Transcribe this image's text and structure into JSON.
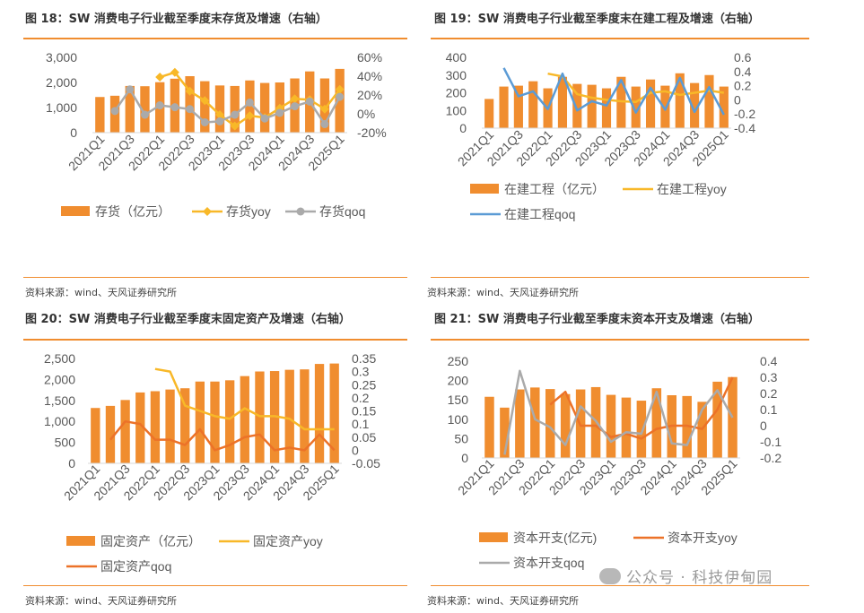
{
  "sources": {
    "top_left": "资料来源：wind、天风证券研究所",
    "top_right": "资料来源：wind、天风证券研究所",
    "bottom_left": "资料来源：wind、天风证券研究所",
    "bottom_right": "资料来源：wind、天风证券研究所"
  },
  "watermark": "公众号 · 科技伊甸园",
  "colors": {
    "bar": "#f08d2f",
    "yoy_gold": "#f8b828",
    "qoq_gray": "#aaaaaa",
    "qoq_blue": "#5b9bd5",
    "orange_line": "#ec7228",
    "rule": "#f08d2f"
  },
  "chart_data": [
    {
      "type": "bar",
      "title": "图 18：SW 消费电子行业截至季度末存货及增速（右轴）",
      "categories": [
        "2021Q1",
        "2021Q2",
        "2021Q3",
        "2021Q4",
        "2022Q1",
        "2022Q2",
        "2022Q3",
        "2022Q4",
        "2023Q1",
        "2023Q2",
        "2023Q3",
        "2023Q4",
        "2024Q1",
        "2024Q2",
        "2024Q3",
        "2024Q4",
        "2025Q1"
      ],
      "x_tick_labels": [
        "2021Q1",
        "2021Q3",
        "2022Q1",
        "2022Q3",
        "2023Q1",
        "2023Q3",
        "2024Q1",
        "2024Q3",
        "2025Q1"
      ],
      "y_left_ticks": [
        "3,000",
        "2,000",
        "1,000",
        "0"
      ],
      "y_right_ticks": [
        "60%",
        "40%",
        "20%",
        "0%",
        "-20%"
      ],
      "ylim_left": [
        0,
        3000
      ],
      "ylim_right": [
        -20,
        60
      ],
      "series": [
        {
          "name": "存货（亿元）",
          "kind": "bar",
          "axis": "left",
          "values": [
            1420,
            1470,
            1860,
            1850,
            2010,
            2150,
            2250,
            2050,
            1880,
            1860,
            2080,
            1980,
            2000,
            2160,
            2440,
            2160,
            2540
          ]
        },
        {
          "name": "存货yoy",
          "kind": "line",
          "axis": "right",
          "values": [
            null,
            null,
            null,
            null,
            39,
            44,
            24,
            14,
            -1,
            -13,
            -2,
            -4,
            6,
            16,
            15,
            5,
            26
          ]
        },
        {
          "name": "存货qoq",
          "kind": "line",
          "axis": "right",
          "values": [
            null,
            3,
            26,
            -1,
            9,
            7,
            5,
            -9,
            -8,
            -1,
            12,
            -5,
            1,
            8,
            13,
            -11,
            18
          ]
        }
      ]
    },
    {
      "type": "bar",
      "title": "图 19：SW 消费电子行业截至季度末在建工程及增速（右轴）",
      "categories": [
        "2021Q1",
        "2021Q2",
        "2021Q3",
        "2021Q4",
        "2022Q1",
        "2022Q2",
        "2022Q3",
        "2022Q4",
        "2023Q1",
        "2023Q2",
        "2023Q3",
        "2023Q4",
        "2024Q1",
        "2024Q2",
        "2024Q3",
        "2024Q4",
        "2025Q1"
      ],
      "x_tick_labels": [
        "2021Q1",
        "2021Q3",
        "2022Q1",
        "2022Q3",
        "2023Q1",
        "2023Q3",
        "2024Q1",
        "2024Q3",
        "2025Q1"
      ],
      "y_left_ticks": [
        "400",
        "300",
        "200",
        "100",
        "0"
      ],
      "y_right_ticks": [
        "0.6",
        "0.4",
        "0.2",
        "0",
        "-0.2",
        "-0.4"
      ],
      "ylim_left": [
        0,
        400
      ],
      "ylim_right": [
        -0.4,
        0.6
      ],
      "series": [
        {
          "name": "在建工程（亿元）",
          "kind": "bar",
          "axis": "left",
          "values": [
            165,
            235,
            240,
            265,
            225,
            290,
            250,
            245,
            225,
            290,
            235,
            275,
            240,
            310,
            255,
            300,
            235
          ]
        },
        {
          "name": "在建工程yoy",
          "kind": "line",
          "axis": "right",
          "values": [
            null,
            null,
            null,
            null,
            0.37,
            0.33,
            0.08,
            0.03,
            0.0,
            -0.02,
            -0.03,
            0.1,
            0.12,
            0.07,
            0.1,
            0.13,
            0.1
          ]
        },
        {
          "name": "在建工程qoq",
          "kind": "line",
          "axis": "right",
          "values": [
            null,
            0.45,
            0.05,
            0.12,
            -0.13,
            0.37,
            -0.15,
            -0.02,
            -0.08,
            0.28,
            -0.18,
            0.17,
            -0.14,
            0.31,
            -0.17,
            0.18,
            -0.21
          ]
        }
      ]
    },
    {
      "type": "bar",
      "title": "图 20：SW 消费电子行业截至季度末固定资产及增速（右轴）",
      "categories": [
        "2021Q1",
        "2021Q2",
        "2021Q3",
        "2021Q4",
        "2022Q1",
        "2022Q2",
        "2022Q3",
        "2022Q4",
        "2023Q1",
        "2023Q2",
        "2023Q3",
        "2023Q4",
        "2024Q1",
        "2024Q2",
        "2024Q3",
        "2024Q4",
        "2025Q1"
      ],
      "x_tick_labels": [
        "2021Q1",
        "2021Q3",
        "2022Q1",
        "2022Q3",
        "2023Q1",
        "2023Q3",
        "2024Q1",
        "2024Q3",
        "2025Q1"
      ],
      "y_left_ticks": [
        "2,500",
        "2,000",
        "1,500",
        "1,000",
        "500",
        "0"
      ],
      "y_right_ticks": [
        "0.35",
        "0.3",
        "0.25",
        "0.2",
        "0.15",
        "0.1",
        "0.05",
        "0",
        "-0.05"
      ],
      "ylim_left": [
        0,
        2500
      ],
      "ylim_right": [
        -0.05,
        0.35
      ],
      "series": [
        {
          "name": "固定资产（亿元）",
          "kind": "bar",
          "axis": "left",
          "values": [
            1320,
            1370,
            1510,
            1690,
            1720,
            1760,
            1790,
            1950,
            1950,
            1980,
            2080,
            2190,
            2200,
            2230,
            2240,
            2370,
            2380
          ]
        },
        {
          "name": "固定资产yoy",
          "kind": "line",
          "axis": "right",
          "values": [
            null,
            null,
            null,
            null,
            0.31,
            0.3,
            0.17,
            0.15,
            0.13,
            0.12,
            0.16,
            0.13,
            0.13,
            0.12,
            0.08,
            0.08,
            0.08
          ]
        },
        {
          "name": "固定资产qoq",
          "kind": "line",
          "axis": "right",
          "values": [
            null,
            0.04,
            0.11,
            0.1,
            0.04,
            0.04,
            0.02,
            0.08,
            0.0,
            0.02,
            0.05,
            0.06,
            0.0,
            0.01,
            0.0,
            0.06,
            0.0
          ]
        }
      ]
    },
    {
      "type": "bar",
      "title": "图 21：SW 消费电子行业截至季度末资本开支及增速（右轴）",
      "categories": [
        "2021Q1",
        "2021Q2",
        "2021Q3",
        "2021Q4",
        "2022Q1",
        "2022Q2",
        "2022Q3",
        "2022Q4",
        "2023Q1",
        "2023Q2",
        "2023Q3",
        "2023Q4",
        "2024Q1",
        "2024Q2",
        "2024Q3",
        "2024Q4",
        "2025Q1"
      ],
      "x_tick_labels": [
        "2021Q1",
        "2021Q3",
        "2022Q1",
        "2022Q3",
        "2023Q1",
        "2023Q3",
        "2024Q1",
        "2024Q3",
        "2025Q1"
      ],
      "y_left_ticks": [
        "250",
        "200",
        "150",
        "100",
        "50",
        "0"
      ],
      "y_right_ticks": [
        "0.4",
        "0.3",
        "0.2",
        "0.1",
        "0",
        "-0.1",
        "-0.2"
      ],
      "ylim_left": [
        0,
        250
      ],
      "ylim_right": [
        -0.2,
        0.4
      ],
      "series": [
        {
          "name": "资本开支(亿元)",
          "kind": "bar",
          "axis": "left",
          "values": [
            158,
            130,
            177,
            182,
            178,
            165,
            177,
            183,
            163,
            156,
            148,
            180,
            162,
            160,
            145,
            197,
            209
          ]
        },
        {
          "name": "资本开支yoy",
          "kind": "line",
          "axis": "right",
          "values": [
            null,
            null,
            null,
            null,
            0.13,
            0.21,
            0.0,
            0.0,
            -0.07,
            -0.05,
            -0.08,
            -0.02,
            0.0,
            0.0,
            -0.02,
            0.1,
            0.3
          ]
        },
        {
          "name": "资本开支qoq",
          "kind": "line",
          "axis": "right",
          "values": [
            null,
            -0.18,
            0.34,
            0.04,
            -0.01,
            -0.12,
            0.12,
            0.03,
            -0.1,
            -0.04,
            -0.05,
            0.21,
            -0.11,
            -0.12,
            0.1,
            0.22,
            0.05
          ]
        }
      ]
    }
  ]
}
